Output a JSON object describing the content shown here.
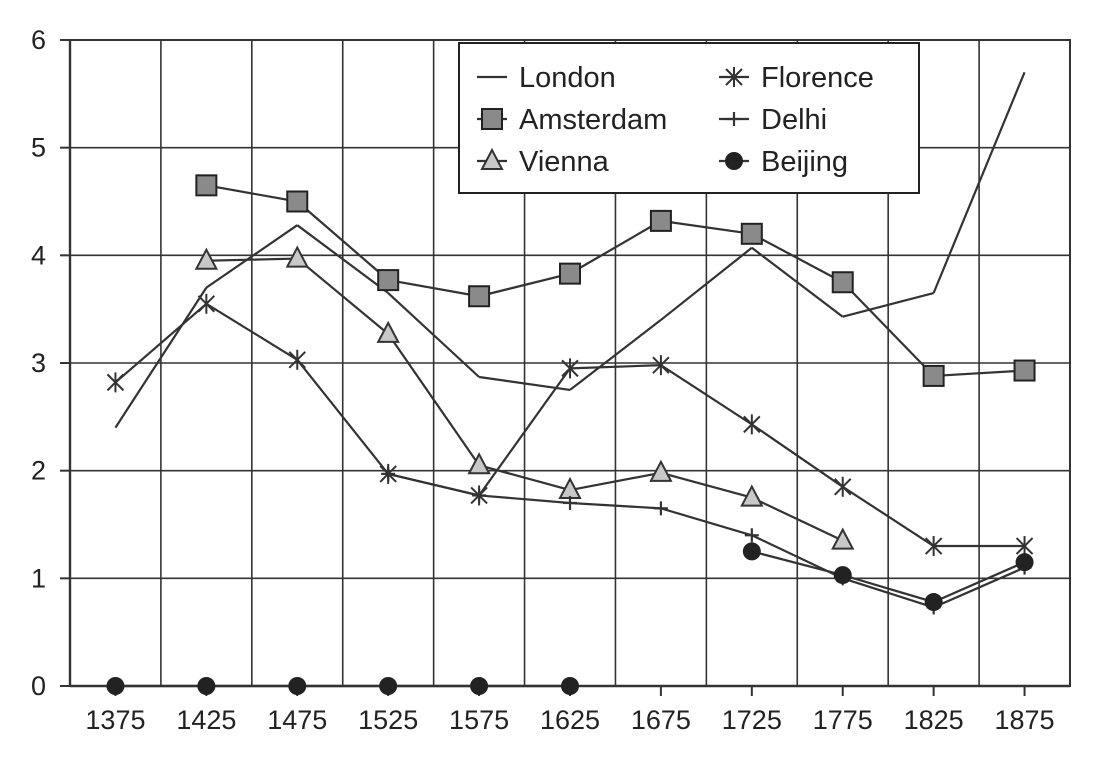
{
  "chart_data": {
    "type": "line",
    "categories": [
      "1375",
      "1425",
      "1475",
      "1525",
      "1575",
      "1625",
      "1675",
      "1725",
      "1775",
      "1825",
      "1875"
    ],
    "ylim": [
      0,
      6
    ],
    "yticks": [
      "0",
      "1",
      "2",
      "3",
      "4",
      "5",
      "6"
    ],
    "grid": true,
    "legend_position": "top-right",
    "series": [
      {
        "name": "London",
        "marker": "none",
        "values": [
          2.4,
          3.7,
          4.28,
          3.65,
          2.87,
          2.75,
          3.4,
          4.07,
          3.43,
          3.65,
          5.7
        ]
      },
      {
        "name": "Amsterdam",
        "marker": "square",
        "values": [
          null,
          4.65,
          4.5,
          3.77,
          3.62,
          3.83,
          4.32,
          4.2,
          3.75,
          2.88,
          2.93
        ]
      },
      {
        "name": "Vienna",
        "marker": "triangle",
        "values": [
          null,
          3.95,
          3.97,
          3.27,
          2.05,
          1.82,
          1.98,
          1.75,
          1.35,
          null,
          null
        ]
      },
      {
        "name": "Florence",
        "marker": "asterisk",
        "values": [
          2.82,
          3.55,
          3.03,
          1.97,
          1.77,
          2.95,
          2.98,
          2.43,
          1.85,
          1.3,
          1.3
        ]
      },
      {
        "name": "Delhi",
        "marker": "plus",
        "values": [
          null,
          null,
          null,
          1.97,
          1.77,
          1.7,
          1.65,
          1.4,
          1.0,
          0.73,
          1.1
        ]
      },
      {
        "name": "Beijing",
        "marker": "circle",
        "values": [
          0,
          0,
          0,
          0,
          0,
          0,
          null,
          1.25,
          1.03,
          0.78,
          1.15
        ]
      }
    ]
  }
}
